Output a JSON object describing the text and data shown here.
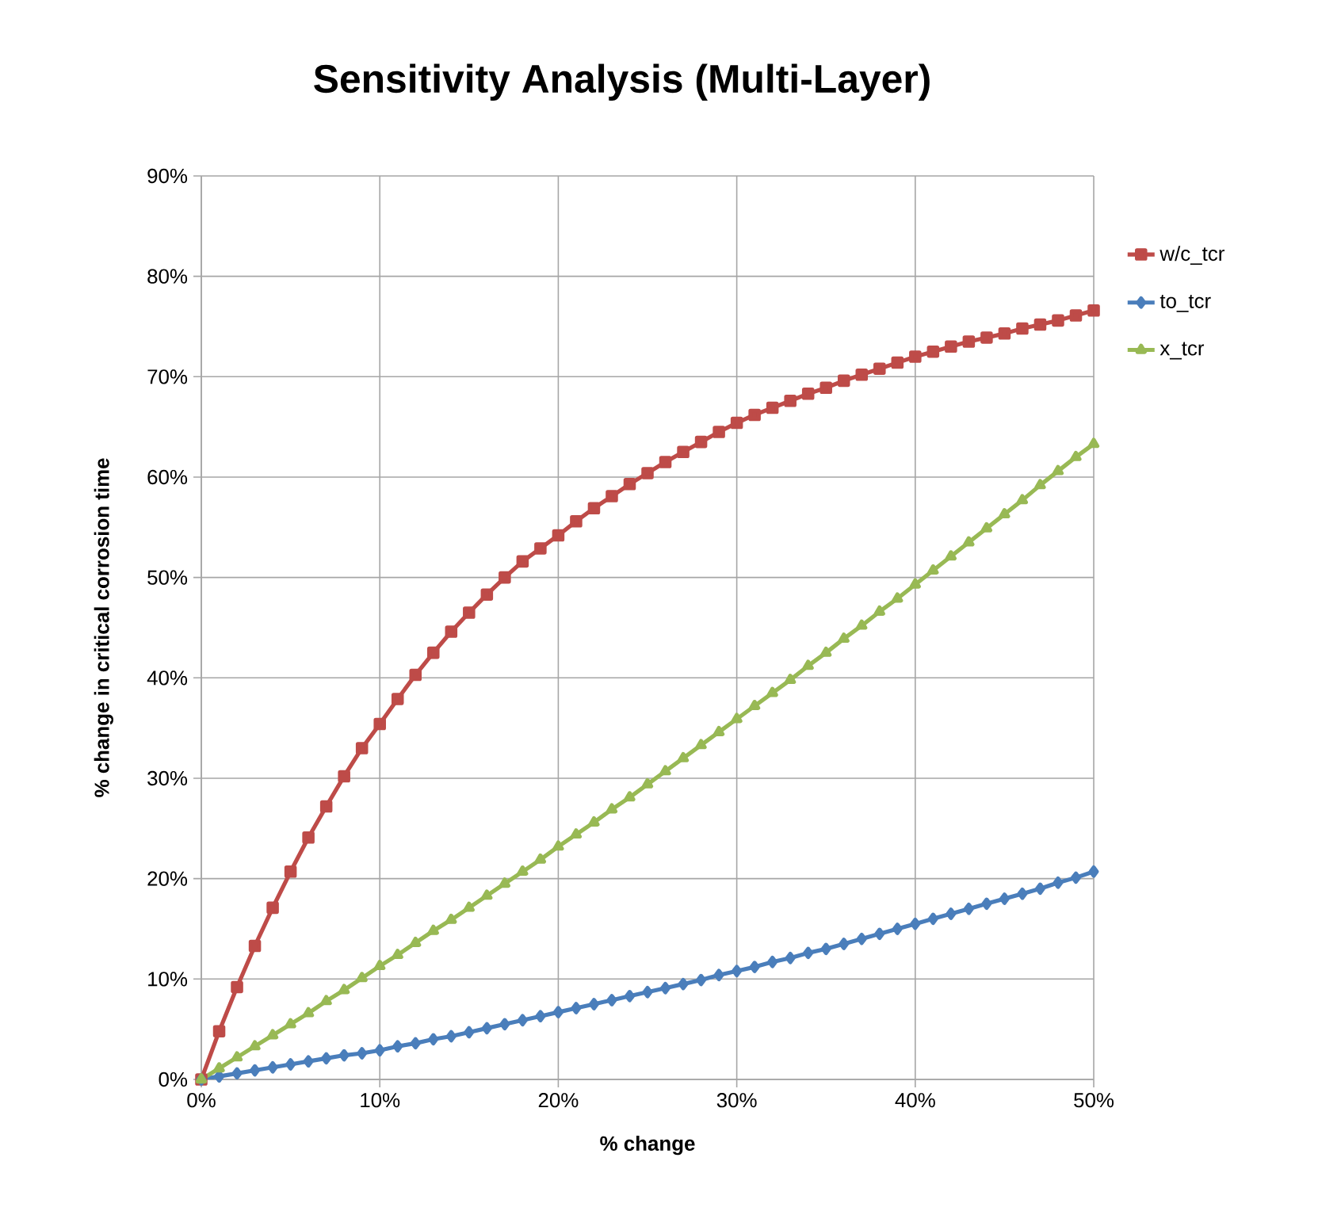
{
  "chart_data": {
    "type": "line",
    "title": "Sensitivity Analysis (Multi-Layer)",
    "xlabel": "% change",
    "ylabel": "% change in critical corrosion time",
    "x": [
      0,
      1,
      2,
      3,
      4,
      5,
      6,
      7,
      8,
      9,
      10,
      11,
      12,
      13,
      14,
      15,
      16,
      17,
      18,
      19,
      20,
      21,
      22,
      23,
      24,
      25,
      26,
      27,
      28,
      29,
      30,
      31,
      32,
      33,
      34,
      35,
      36,
      37,
      38,
      39,
      40,
      41,
      42,
      43,
      44,
      45,
      46,
      47,
      48,
      49,
      50
    ],
    "series": [
      {
        "name": "w/c_tcr",
        "color": "#be4b48",
        "marker": "square",
        "values": [
          0,
          4.8,
          9.2,
          13.3,
          17.1,
          20.7,
          24.1,
          27.2,
          30.2,
          33.0,
          35.4,
          37.9,
          40.3,
          42.5,
          44.6,
          46.5,
          48.3,
          50.0,
          51.6,
          52.9,
          54.2,
          55.6,
          56.9,
          58.1,
          59.3,
          60.4,
          61.5,
          62.5,
          63.5,
          64.5,
          65.4,
          66.2,
          66.9,
          67.6,
          68.3,
          68.9,
          69.6,
          70.2,
          70.8,
          71.4,
          72.0,
          72.5,
          73.0,
          73.5,
          73.9,
          74.3,
          74.8,
          75.2,
          75.6,
          76.1,
          76.6
        ]
      },
      {
        "name": "to_tcr",
        "color": "#4a7ebb",
        "marker": "diamond",
        "values": [
          0,
          0.3,
          0.6,
          0.9,
          1.2,
          1.5,
          1.8,
          2.1,
          2.4,
          2.6,
          2.9,
          3.3,
          3.6,
          4.0,
          4.3,
          4.7,
          5.1,
          5.5,
          5.9,
          6.3,
          6.7,
          7.1,
          7.5,
          7.9,
          8.3,
          8.7,
          9.1,
          9.5,
          9.9,
          10.4,
          10.8,
          11.2,
          11.7,
          12.1,
          12.6,
          13.0,
          13.5,
          14.0,
          14.5,
          15.0,
          15.5,
          16.0,
          16.5,
          17.0,
          17.5,
          18.0,
          18.5,
          19.0,
          19.6,
          20.1,
          20.7
        ]
      },
      {
        "name": "x_tcr",
        "color": "#98b954",
        "marker": "triangle",
        "values": [
          0,
          1.1,
          2.2,
          3.3,
          4.4,
          5.5,
          6.6,
          7.8,
          8.9,
          10.1,
          11.3,
          12.4,
          13.6,
          14.8,
          15.9,
          17.1,
          18.3,
          19.5,
          20.7,
          21.9,
          23.2,
          24.4,
          25.6,
          26.9,
          28.1,
          29.4,
          30.7,
          32.0,
          33.3,
          34.6,
          35.9,
          37.2,
          38.5,
          39.8,
          41.2,
          42.5,
          43.9,
          45.2,
          46.6,
          47.9,
          49.3,
          50.7,
          52.1,
          53.5,
          54.9,
          56.3,
          57.7,
          59.2,
          60.6,
          62.0,
          63.3
        ]
      }
    ],
    "xlim": [
      0,
      50
    ],
    "xticks": [
      {
        "value": 0,
        "label": "0%"
      },
      {
        "value": 10,
        "label": "10%"
      },
      {
        "value": 20,
        "label": "20%"
      },
      {
        "value": 30,
        "label": "30%"
      },
      {
        "value": 40,
        "label": "40%"
      },
      {
        "value": 50,
        "label": "50%"
      }
    ],
    "ylim": [
      0,
      90
    ],
    "yticks": [
      {
        "value": 0,
        "label": "0%"
      },
      {
        "value": 10,
        "label": "10%"
      },
      {
        "value": 20,
        "label": "20%"
      },
      {
        "value": 30,
        "label": "30%"
      },
      {
        "value": 40,
        "label": "40%"
      },
      {
        "value": 50,
        "label": "50%"
      },
      {
        "value": 60,
        "label": "60%"
      },
      {
        "value": 70,
        "label": "70%"
      },
      {
        "value": 80,
        "label": "80%"
      },
      {
        "value": 90,
        "label": "90%"
      }
    ],
    "grid": true,
    "legend": "right",
    "line_style": "solid"
  }
}
